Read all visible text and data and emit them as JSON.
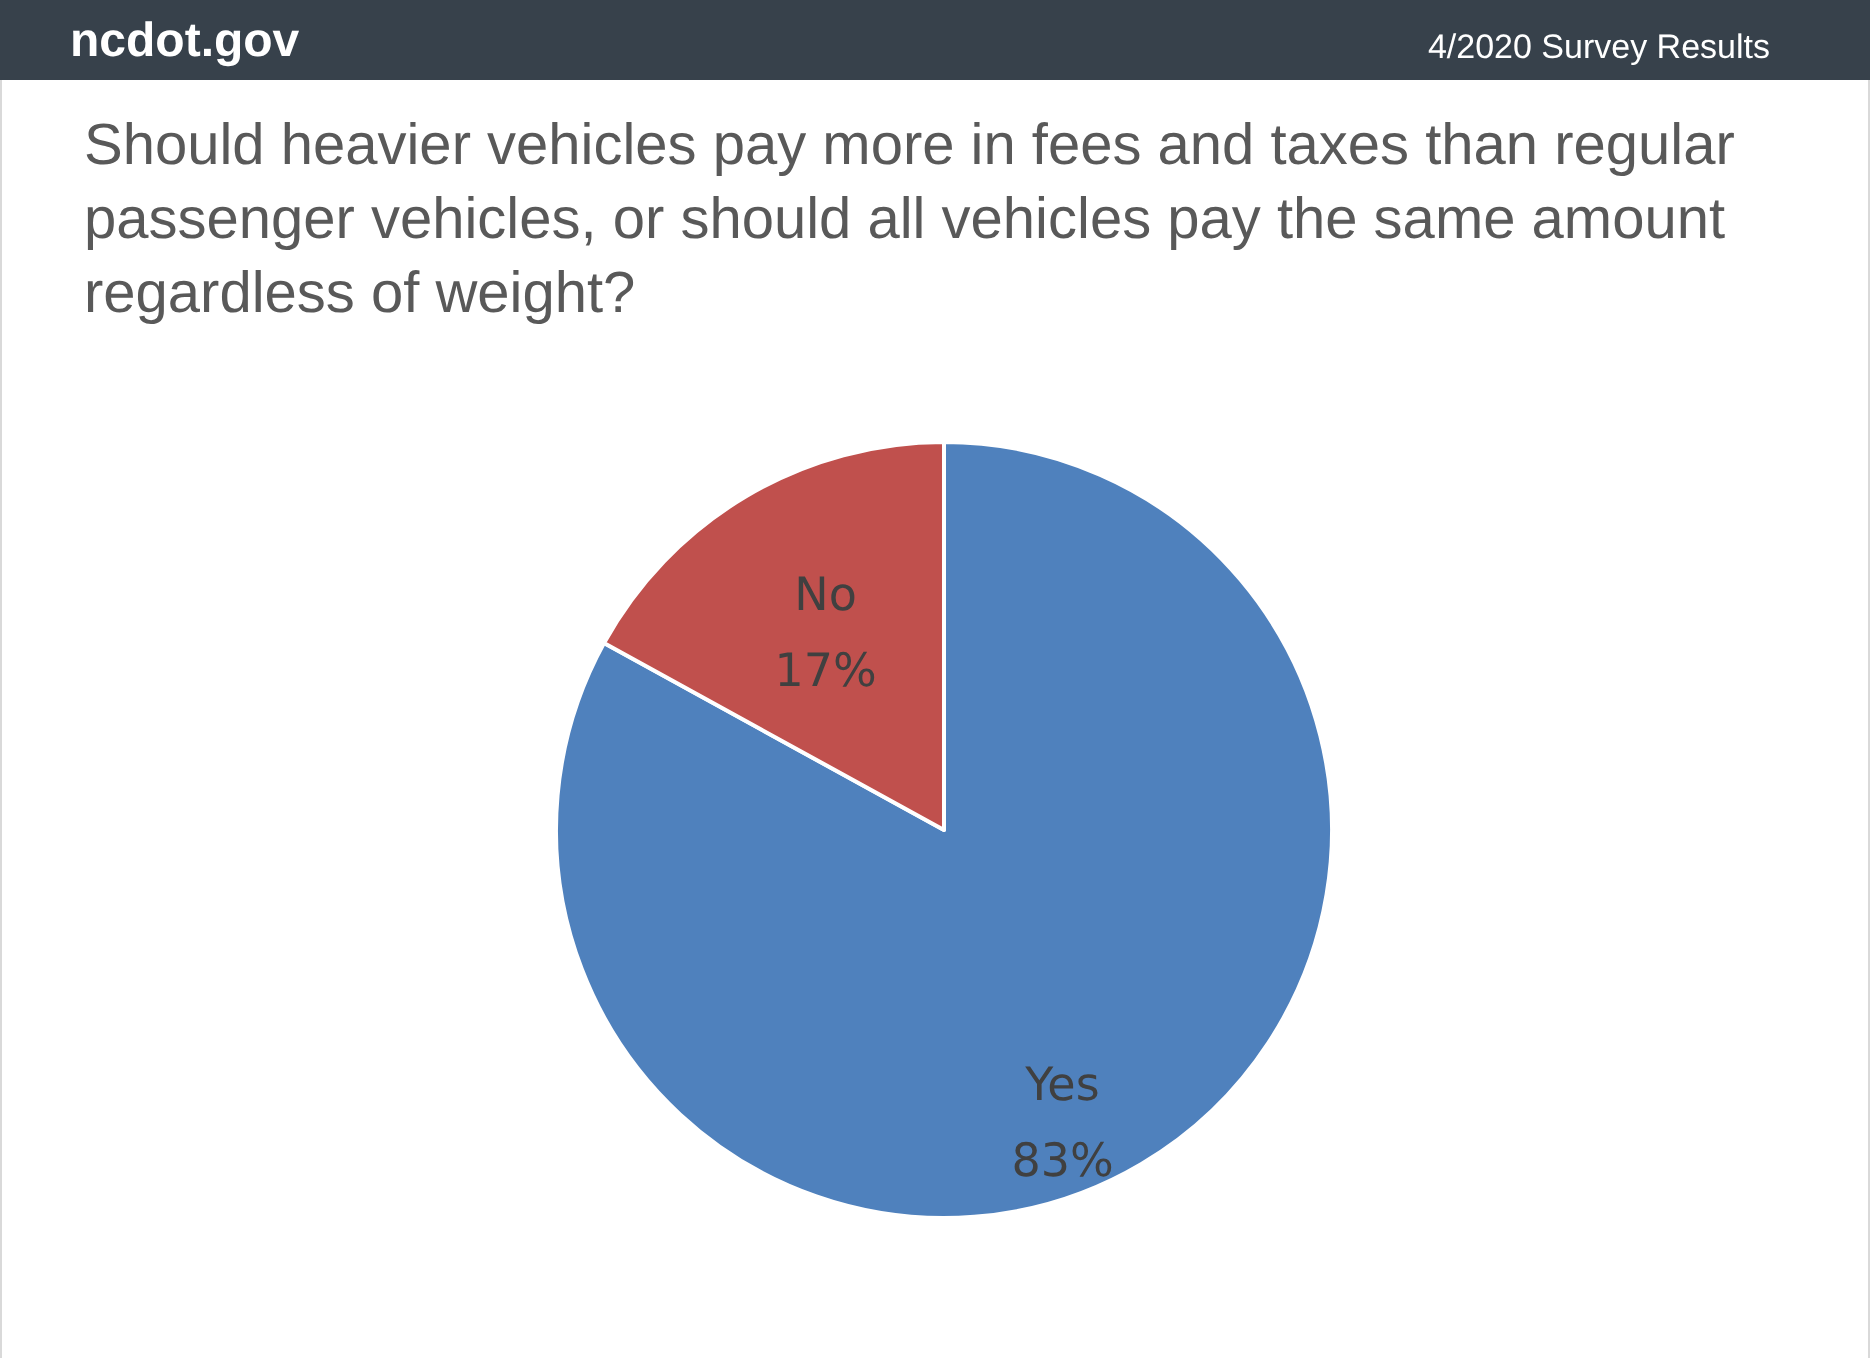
{
  "chart_data": {
    "type": "pie",
    "title": "Should heavier vehicles pay more in fees and taxes than regular passenger vehicles, or should all vehicles pay the same amount regardless of weight?",
    "categories": [
      "Yes",
      "No"
    ],
    "values": [
      83,
      17
    ],
    "colors": [
      "#4f81bd",
      "#c0504d"
    ],
    "value_labels": [
      "83%",
      "17%"
    ],
    "annotations": [
      "ncdot.gov",
      "4/2020 Survey Results"
    ],
    "legend": false
  }
}
